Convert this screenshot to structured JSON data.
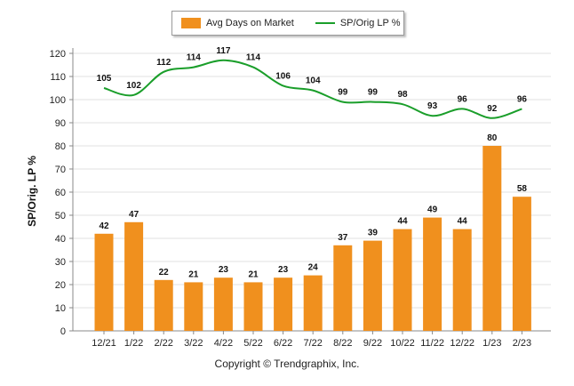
{
  "chart_data": {
    "type": "bar+line",
    "categories": [
      "12/21",
      "1/22",
      "2/22",
      "3/22",
      "4/22",
      "5/22",
      "6/22",
      "7/22",
      "8/22",
      "9/22",
      "10/22",
      "11/22",
      "12/22",
      "1/23",
      "2/23"
    ],
    "series": [
      {
        "name": "Avg Days on Market",
        "type": "bar",
        "color": "#f0901e",
        "values": [
          42,
          47,
          22,
          21,
          23,
          21,
          23,
          24,
          37,
          39,
          44,
          49,
          44,
          80,
          58
        ]
      },
      {
        "name": "SP/Orig LP %",
        "type": "line",
        "color": "#1a9e2a",
        "values": [
          105,
          102,
          112,
          114,
          117,
          114,
          106,
          104,
          99,
          99,
          98,
          93,
          96,
          92,
          96
        ]
      }
    ],
    "ylabel": "SP/Orig. LP %",
    "ylim": [
      0,
      120
    ],
    "yticks": [
      0,
      10,
      20,
      30,
      40,
      50,
      60,
      70,
      80,
      90,
      100,
      110,
      120
    ],
    "grid": true,
    "legend_position": "top-center"
  },
  "footer": {
    "copyright": "Copyright © Trendgraphix, Inc."
  }
}
